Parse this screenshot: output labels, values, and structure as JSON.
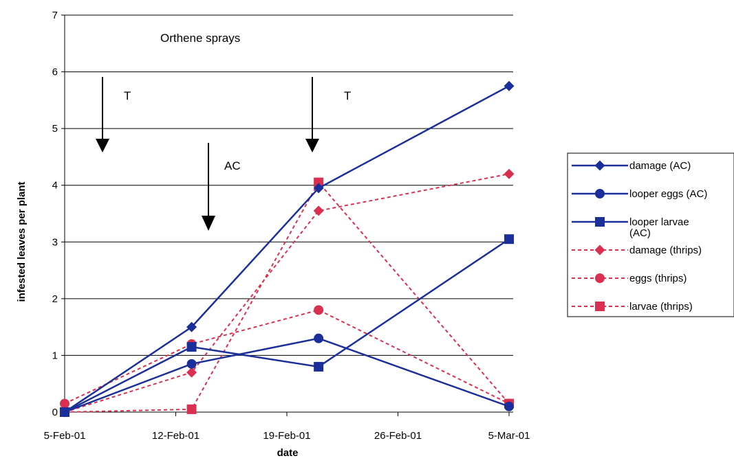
{
  "chart_data": {
    "type": "line",
    "title": "",
    "xlabel": "date",
    "ylabel": "infested leaves per plant",
    "ylim": [
      0,
      7
    ],
    "yticks": [
      0,
      1,
      2,
      3,
      4,
      5,
      6,
      7
    ],
    "x_tick_labels": [
      "5-Feb-01",
      "12-Feb-01",
      "19-Feb-01",
      "26-Feb-01",
      "5-Mar-01"
    ],
    "x_range": [
      "2001-02-05",
      "2001-03-05"
    ],
    "grid": "horizontal",
    "legend_position": "right",
    "annotations": [
      "Orthene sprays",
      "T",
      "AC",
      "T"
    ],
    "series": [
      {
        "name": "damage (AC)",
        "color": "#1a2f9a",
        "dash": "solid",
        "marker": "diamond",
        "points": [
          [
            "2001-02-05",
            0.0
          ],
          [
            "2001-02-13",
            1.5
          ],
          [
            "2001-02-21",
            3.95
          ],
          [
            "2001-03-05",
            5.75
          ]
        ]
      },
      {
        "name": "looper eggs (AC)",
        "color": "#1a2f9a",
        "dash": "solid",
        "marker": "circle",
        "points": [
          [
            "2001-02-05",
            0.0
          ],
          [
            "2001-02-13",
            0.85
          ],
          [
            "2001-02-21",
            1.3
          ],
          [
            "2001-03-05",
            0.1
          ]
        ]
      },
      {
        "name": "looper larvae (AC)",
        "color": "#1a2f9a",
        "dash": "solid",
        "marker": "square",
        "points": [
          [
            "2001-02-05",
            0.0
          ],
          [
            "2001-02-13",
            1.15
          ],
          [
            "2001-02-21",
            0.8
          ],
          [
            "2001-03-05",
            3.05
          ]
        ]
      },
      {
        "name": "damage (thrips)",
        "color": "#d9304f",
        "dash": "dashed",
        "marker": "diamond",
        "points": [
          [
            "2001-02-05",
            0.0
          ],
          [
            "2001-02-13",
            0.7
          ],
          [
            "2001-02-21",
            3.55
          ],
          [
            "2001-03-05",
            4.2
          ]
        ]
      },
      {
        "name": "eggs (thrips)",
        "color": "#d9304f",
        "dash": "dashed",
        "marker": "circle",
        "points": [
          [
            "2001-02-05",
            0.15
          ],
          [
            "2001-02-13",
            1.2
          ],
          [
            "2001-02-21",
            1.8
          ],
          [
            "2001-03-05",
            0.15
          ]
        ]
      },
      {
        "name": "larvae (thrips)",
        "color": "#d9304f",
        "dash": "dashed",
        "marker": "square",
        "points": [
          [
            "2001-02-05",
            0.0
          ],
          [
            "2001-02-13",
            0.05
          ],
          [
            "2001-02-21",
            4.05
          ],
          [
            "2001-03-05",
            0.15
          ]
        ]
      }
    ]
  }
}
